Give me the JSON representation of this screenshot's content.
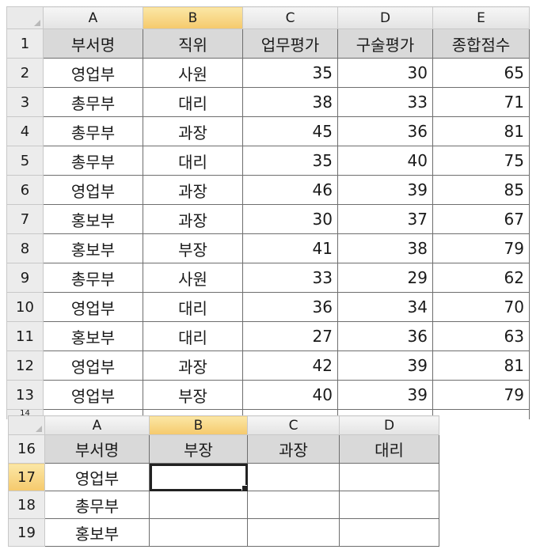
{
  "sheet1": {
    "columns": [
      "A",
      "B",
      "C",
      "D",
      "E"
    ],
    "selected_column": "B",
    "header_row": {
      "row": "1",
      "cells": [
        "부서명",
        "직위",
        "업무평가",
        "구술평가",
        "종합점수"
      ]
    },
    "rows": [
      {
        "row": "2",
        "dept": "영업부",
        "position": "사원",
        "work": 35,
        "oral": 30,
        "total": 65
      },
      {
        "row": "3",
        "dept": "총무부",
        "position": "대리",
        "work": 38,
        "oral": 33,
        "total": 71
      },
      {
        "row": "4",
        "dept": "총무부",
        "position": "과장",
        "work": 45,
        "oral": 36,
        "total": 81
      },
      {
        "row": "5",
        "dept": "총무부",
        "position": "대리",
        "work": 35,
        "oral": 40,
        "total": 75
      },
      {
        "row": "6",
        "dept": "영업부",
        "position": "과장",
        "work": 46,
        "oral": 39,
        "total": 85
      },
      {
        "row": "7",
        "dept": "홍보부",
        "position": "과장",
        "work": 30,
        "oral": 37,
        "total": 67
      },
      {
        "row": "8",
        "dept": "홍보부",
        "position": "부장",
        "work": 41,
        "oral": 38,
        "total": 79
      },
      {
        "row": "9",
        "dept": "총무부",
        "position": "사원",
        "work": 33,
        "oral": 29,
        "total": 62
      },
      {
        "row": "10",
        "dept": "영업부",
        "position": "대리",
        "work": 36,
        "oral": 34,
        "total": 70
      },
      {
        "row": "11",
        "dept": "홍보부",
        "position": "대리",
        "work": 27,
        "oral": 36,
        "total": 63
      },
      {
        "row": "12",
        "dept": "영업부",
        "position": "과장",
        "work": 42,
        "oral": 39,
        "total": 81
      },
      {
        "row": "13",
        "dept": "영업부",
        "position": "부장",
        "work": 40,
        "oral": 39,
        "total": 79
      }
    ],
    "partial_row": "14"
  },
  "sheet2": {
    "columns": [
      "A",
      "B",
      "C",
      "D"
    ],
    "selected_column": "B",
    "selected_row": "17",
    "header_row": {
      "row": "16",
      "cells": [
        "부서명",
        "부장",
        "과장",
        "대리"
      ]
    },
    "rows": [
      {
        "row": "17",
        "dept": "영업부",
        "cells": [
          "",
          "",
          ""
        ]
      },
      {
        "row": "18",
        "dept": "총무부",
        "cells": [
          "",
          "",
          ""
        ]
      },
      {
        "row": "19",
        "dept": "홍보부",
        "cells": [
          "",
          "",
          ""
        ]
      }
    ],
    "active_cell": "B17"
  },
  "colors": {
    "header_fill": "#d9d9d9",
    "selected_header": "#f5c96c",
    "grid_line": "#6e6e6e"
  }
}
